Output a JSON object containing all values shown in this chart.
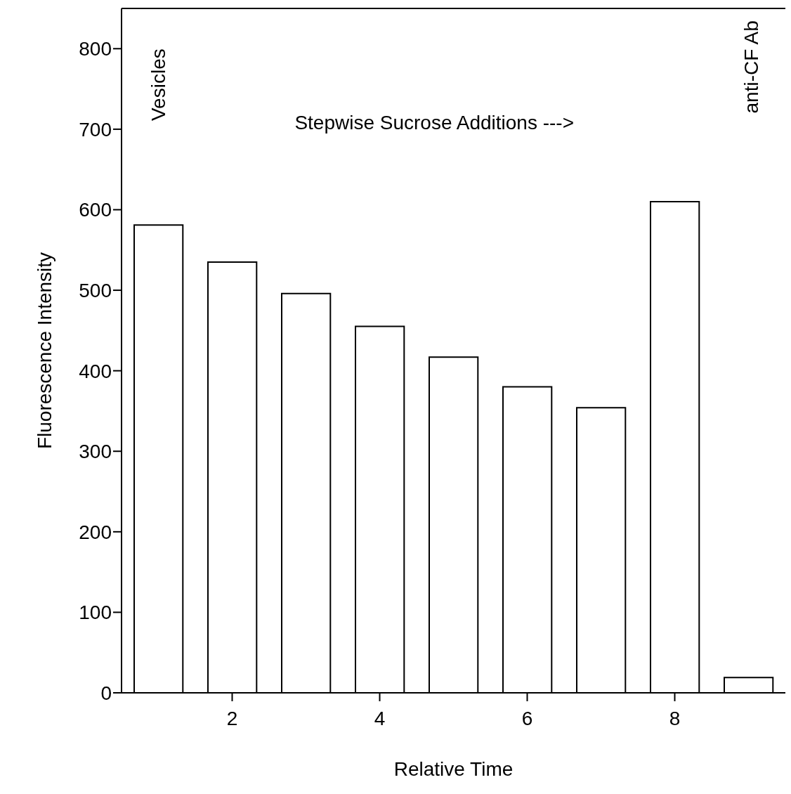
{
  "chart_data": {
    "type": "bar",
    "xlabel": "Relative Time",
    "ylabel": "Fluorescence Intensity",
    "x": [
      1,
      2,
      3,
      4,
      5,
      6,
      7,
      8,
      9
    ],
    "values": [
      581,
      535,
      496,
      455,
      417,
      380,
      354,
      610,
      19
    ],
    "color": "#ffffff",
    "xlim": [
      0.5,
      9.5
    ],
    "xticks": [
      2,
      4,
      6,
      8
    ],
    "ylim": [
      0,
      850
    ],
    "yticks": [
      0,
      100,
      200,
      300,
      400,
      500,
      600,
      700,
      800
    ],
    "grid": false,
    "annotations": [
      "Vesicles",
      "Stepwise Sucrose Additions --->",
      "anti-CF Ab"
    ]
  }
}
